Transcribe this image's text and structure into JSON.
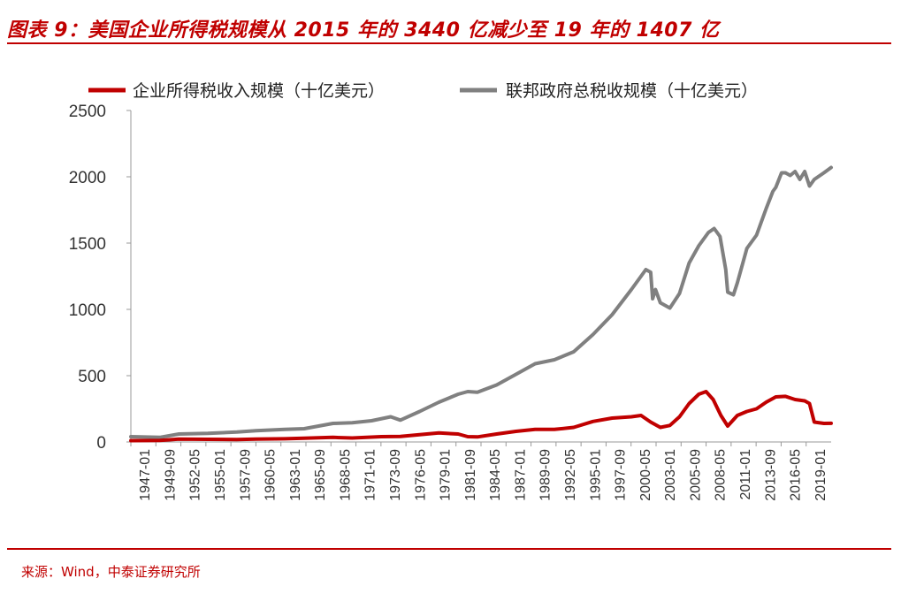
{
  "title": "图表 9：美国企业所得税规模从 2015 年的 3440 亿减少至 19 年的 1407 亿",
  "source": "来源：Wind，中泰证券研究所",
  "colors": {
    "accent": "#c00000",
    "series1": "#c00000",
    "series2": "#808080"
  },
  "chart_data": {
    "type": "line",
    "ylim": [
      0,
      2500
    ],
    "yticks": [
      0,
      500,
      1000,
      1500,
      2000,
      2500
    ],
    "xlim": [
      1947.0,
      2019.75
    ],
    "xtick_labels": [
      "1947-01",
      "1949-09",
      "1952-05",
      "1955-01",
      "1957-09",
      "1960-05",
      "1963-01",
      "1965-09",
      "1968-05",
      "1971-01",
      "1973-09",
      "1976-05",
      "1979-01",
      "1981-09",
      "1984-05",
      "1987-01",
      "1989-09",
      "1992-05",
      "1995-01",
      "1997-09",
      "2000-05",
      "2003-01",
      "2005-09",
      "2008-05",
      "2011-01",
      "2013-09",
      "2016-05",
      "2019-01"
    ],
    "grid": false,
    "legend_position": "top",
    "series": [
      {
        "name": "企业所得税收入规模（十亿美元）",
        "color": "#c00000",
        "points": [
          [
            1947,
            10
          ],
          [
            1950,
            12
          ],
          [
            1952,
            22
          ],
          [
            1955,
            20
          ],
          [
            1958,
            18
          ],
          [
            1960,
            22
          ],
          [
            1963,
            24
          ],
          [
            1965,
            28
          ],
          [
            1968,
            35
          ],
          [
            1970,
            30
          ],
          [
            1973,
            40
          ],
          [
            1975,
            42
          ],
          [
            1977,
            55
          ],
          [
            1979,
            68
          ],
          [
            1981,
            60
          ],
          [
            1982,
            40
          ],
          [
            1983,
            38
          ],
          [
            1985,
            60
          ],
          [
            1987,
            80
          ],
          [
            1989,
            95
          ],
          [
            1991,
            95
          ],
          [
            1993,
            110
          ],
          [
            1995,
            155
          ],
          [
            1997,
            180
          ],
          [
            1999,
            190
          ],
          [
            2000,
            200
          ],
          [
            2001,
            150
          ],
          [
            2002,
            110
          ],
          [
            2003,
            125
          ],
          [
            2004,
            190
          ],
          [
            2005,
            290
          ],
          [
            2006,
            360
          ],
          [
            2006.75,
            380
          ],
          [
            2007.5,
            320
          ],
          [
            2008.3,
            200
          ],
          [
            2009,
            120
          ],
          [
            2010,
            200
          ],
          [
            2011,
            230
          ],
          [
            2012,
            250
          ],
          [
            2013,
            300
          ],
          [
            2014,
            340
          ],
          [
            2015,
            344
          ],
          [
            2016,
            320
          ],
          [
            2017,
            310
          ],
          [
            2017.5,
            290
          ],
          [
            2018,
            150
          ],
          [
            2019,
            140
          ],
          [
            2019.75,
            141
          ]
        ]
      },
      {
        "name": "联邦政府总税收规模（十亿美元）",
        "color": "#808080",
        "points": [
          [
            1947,
            40
          ],
          [
            1950,
            35
          ],
          [
            1952,
            60
          ],
          [
            1955,
            65
          ],
          [
            1958,
            75
          ],
          [
            1960,
            85
          ],
          [
            1963,
            95
          ],
          [
            1965,
            100
          ],
          [
            1968,
            140
          ],
          [
            1970,
            145
          ],
          [
            1972,
            160
          ],
          [
            1974,
            190
          ],
          [
            1975,
            165
          ],
          [
            1977,
            230
          ],
          [
            1979,
            300
          ],
          [
            1981,
            360
          ],
          [
            1982,
            380
          ],
          [
            1983,
            375
          ],
          [
            1985,
            430
          ],
          [
            1987,
            510
          ],
          [
            1989,
            590
          ],
          [
            1991,
            620
          ],
          [
            1993,
            680
          ],
          [
            1995,
            810
          ],
          [
            1997,
            960
          ],
          [
            1999,
            1150
          ],
          [
            2000,
            1250
          ],
          [
            2000.5,
            1300
          ],
          [
            2001,
            1280
          ],
          [
            2001.2,
            1080
          ],
          [
            2001.5,
            1150
          ],
          [
            2002,
            1050
          ],
          [
            2003,
            1010
          ],
          [
            2004,
            1120
          ],
          [
            2005,
            1350
          ],
          [
            2006,
            1480
          ],
          [
            2007,
            1580
          ],
          [
            2007.6,
            1610
          ],
          [
            2008.2,
            1550
          ],
          [
            2008.8,
            1300
          ],
          [
            2009,
            1130
          ],
          [
            2009.6,
            1110
          ],
          [
            2010,
            1200
          ],
          [
            2011,
            1460
          ],
          [
            2012,
            1560
          ],
          [
            2013,
            1760
          ],
          [
            2013.7,
            1890
          ],
          [
            2014,
            1920
          ],
          [
            2014.6,
            2030
          ],
          [
            2015,
            2030
          ],
          [
            2015.5,
            2010
          ],
          [
            2016,
            2040
          ],
          [
            2016.5,
            1980
          ],
          [
            2017,
            2040
          ],
          [
            2017.5,
            1930
          ],
          [
            2018,
            1980
          ],
          [
            2019,
            2030
          ],
          [
            2019.75,
            2070
          ]
        ]
      }
    ]
  }
}
